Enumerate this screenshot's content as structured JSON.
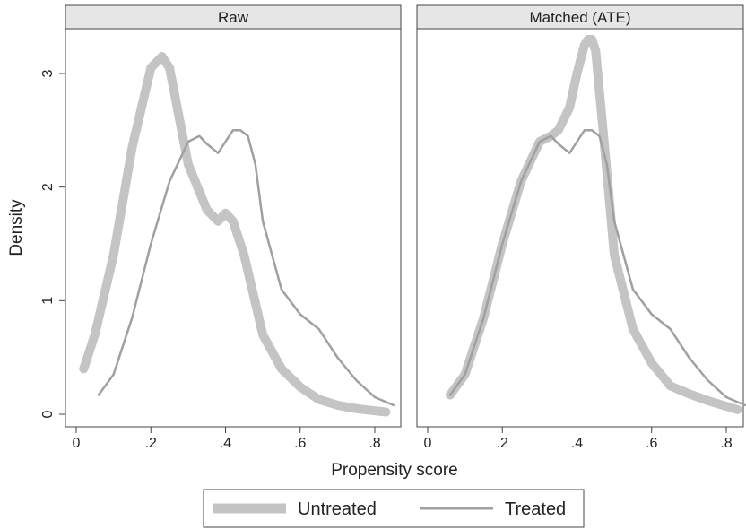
{
  "chart_data": {
    "type": "line",
    "xlabel": "Propensity score",
    "ylabel": "Density",
    "xlim": [
      0,
      0.85
    ],
    "ylim": [
      0,
      3.4
    ],
    "x_ticks": [
      0,
      0.2,
      0.4,
      0.6,
      0.8
    ],
    "x_tick_labels": [
      "0",
      ".2",
      ".4",
      ".6",
      ".8"
    ],
    "y_ticks": [
      0,
      1,
      2,
      3
    ],
    "y_tick_labels": [
      "0",
      "1",
      "2",
      "3"
    ],
    "grid": false,
    "legend": {
      "position": "bottom",
      "entries": [
        "Untreated",
        "Treated"
      ]
    },
    "series_styles": {
      "Untreated": {
        "color": "#c4c4c4",
        "width": "thick"
      },
      "Treated": {
        "color": "#a0a0a0",
        "width": "thin"
      }
    },
    "panels": [
      {
        "title": "Raw",
        "series": [
          {
            "name": "Untreated",
            "x": [
              0.02,
              0.05,
              0.1,
              0.15,
              0.2,
              0.23,
              0.25,
              0.3,
              0.35,
              0.38,
              0.4,
              0.42,
              0.45,
              0.5,
              0.55,
              0.6,
              0.65,
              0.7,
              0.75,
              0.8,
              0.83
            ],
            "y": [
              0.4,
              0.7,
              1.4,
              2.35,
              3.05,
              3.15,
              3.05,
              2.2,
              1.8,
              1.7,
              1.77,
              1.7,
              1.4,
              0.7,
              0.4,
              0.24,
              0.13,
              0.08,
              0.05,
              0.03,
              0.02
            ]
          },
          {
            "name": "Treated",
            "x": [
              0.06,
              0.1,
              0.15,
              0.2,
              0.25,
              0.3,
              0.33,
              0.35,
              0.38,
              0.4,
              0.42,
              0.44,
              0.46,
              0.48,
              0.5,
              0.55,
              0.6,
              0.65,
              0.7,
              0.75,
              0.8,
              0.85
            ],
            "y": [
              0.17,
              0.35,
              0.85,
              1.5,
              2.05,
              2.4,
              2.45,
              2.38,
              2.3,
              2.4,
              2.5,
              2.5,
              2.45,
              2.2,
              1.7,
              1.1,
              0.88,
              0.75,
              0.5,
              0.3,
              0.15,
              0.08
            ]
          }
        ]
      },
      {
        "title": "Matched (ATE)",
        "series": [
          {
            "name": "Untreated",
            "x": [
              0.06,
              0.1,
              0.15,
              0.2,
              0.25,
              0.3,
              0.33,
              0.35,
              0.38,
              0.4,
              0.42,
              0.43,
              0.44,
              0.45,
              0.47,
              0.5,
              0.55,
              0.6,
              0.65,
              0.7,
              0.75,
              0.8,
              0.83
            ],
            "y": [
              0.17,
              0.35,
              0.85,
              1.5,
              2.05,
              2.4,
              2.45,
              2.5,
              2.7,
              3.0,
              3.25,
              3.3,
              3.3,
              3.2,
              2.5,
              1.4,
              0.75,
              0.45,
              0.25,
              0.18,
              0.12,
              0.07,
              0.04
            ]
          },
          {
            "name": "Treated",
            "x": [
              0.06,
              0.1,
              0.15,
              0.2,
              0.25,
              0.3,
              0.33,
              0.35,
              0.38,
              0.4,
              0.42,
              0.44,
              0.46,
              0.48,
              0.5,
              0.55,
              0.6,
              0.65,
              0.7,
              0.75,
              0.8,
              0.85
            ],
            "y": [
              0.17,
              0.35,
              0.85,
              1.5,
              2.05,
              2.4,
              2.45,
              2.38,
              2.3,
              2.4,
              2.5,
              2.5,
              2.45,
              2.2,
              1.7,
              1.1,
              0.88,
              0.75,
              0.5,
              0.3,
              0.15,
              0.08
            ]
          }
        ]
      }
    ]
  }
}
